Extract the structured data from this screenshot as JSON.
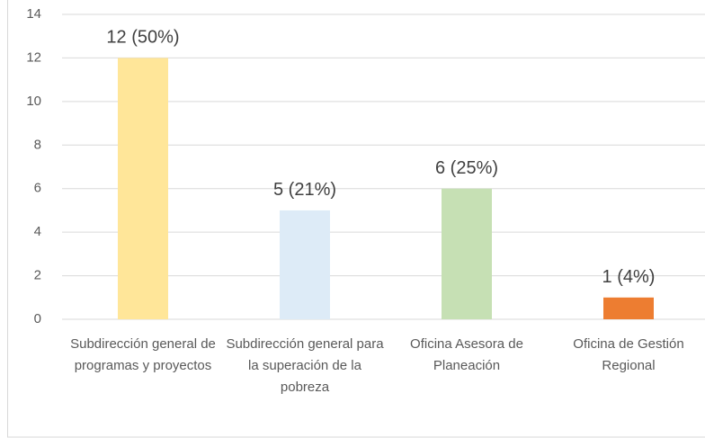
{
  "chart_data": {
    "type": "bar",
    "categories": [
      "Subdirección general de programas y proyectos",
      "Subdirección general para la superación de la pobreza",
      "Oficina Asesora de Planeación",
      "Oficina de Gestión Regional"
    ],
    "values": [
      12,
      5,
      6,
      1
    ],
    "value_labels": [
      "12 (50%)",
      "5 (21%)",
      "6 (25%)",
      "1 (4%)"
    ],
    "colors": [
      "#ffe699",
      "#ddebf7",
      "#c6e0b4",
      "#ed7d31"
    ],
    "ylim": [
      0,
      14
    ],
    "yticks": [
      0,
      2,
      4,
      6,
      8,
      10,
      12,
      14
    ],
    "grid": true
  }
}
